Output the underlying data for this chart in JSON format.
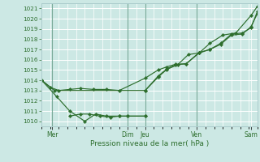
{
  "xlabel": "Pression niveau de la mer( hPa )",
  "bg_color": "#cce8e4",
  "grid_color": "#ffffff",
  "grid_minor_color": "#ddf0ec",
  "line_color": "#2d6e2d",
  "spine_color": "#aacccc",
  "ylim": [
    1009.5,
    1021.5
  ],
  "yticks": [
    1010,
    1011,
    1012,
    1013,
    1014,
    1015,
    1016,
    1017,
    1018,
    1019,
    1020,
    1021
  ],
  "xlim": [
    0,
    100
  ],
  "day_positions": [
    5,
    40,
    48,
    72,
    97
  ],
  "day_labels": [
    "Mer",
    "Dim",
    "Jeu",
    "Ven",
    "Sam"
  ],
  "vline_positions": [
    5,
    40,
    48,
    72
  ],
  "series": [
    {
      "x": [
        0,
        4,
        8,
        13,
        18,
        24,
        30,
        36,
        48,
        54,
        58,
        62,
        67,
        73,
        78,
        83,
        88,
        93,
        97,
        100
      ],
      "y": [
        1014.0,
        1013.3,
        1013.0,
        1013.1,
        1013.2,
        1013.1,
        1013.1,
        1013.0,
        1014.2,
        1015.0,
        1015.3,
        1015.55,
        1015.6,
        1016.65,
        1017.0,
        1017.5,
        1018.4,
        1018.5,
        1019.2,
        1020.5
      ]
    },
    {
      "x": [
        0,
        6,
        48,
        54,
        58,
        63,
        68,
        73,
        78,
        84,
        90,
        97,
        100
      ],
      "y": [
        1014.0,
        1013.0,
        1013.0,
        1014.3,
        1015.05,
        1015.5,
        1016.5,
        1016.65,
        1017.6,
        1018.4,
        1018.6,
        1020.3,
        1021.2
      ]
    },
    {
      "x": [
        48,
        54,
        58,
        62,
        67,
        73,
        78,
        83,
        88,
        93,
        97,
        100
      ],
      "y": [
        1013.0,
        1014.4,
        1015.1,
        1015.5,
        1015.6,
        1016.7,
        1017.0,
        1017.6,
        1018.5,
        1018.6,
        1019.1,
        1020.7
      ]
    },
    {
      "x": [
        0,
        7,
        13,
        20,
        25,
        30,
        36,
        40,
        48
      ],
      "y": [
        1014.0,
        1012.4,
        1011.0,
        1010.0,
        1010.7,
        1010.5,
        1010.5,
        1010.5,
        1010.5
      ]
    },
    {
      "x": [
        13,
        18,
        22,
        27,
        32,
        36,
        40,
        48
      ],
      "y": [
        1010.5,
        1010.7,
        1010.7,
        1010.5,
        1010.4,
        1010.5,
        1010.5,
        1010.5
      ]
    }
  ]
}
